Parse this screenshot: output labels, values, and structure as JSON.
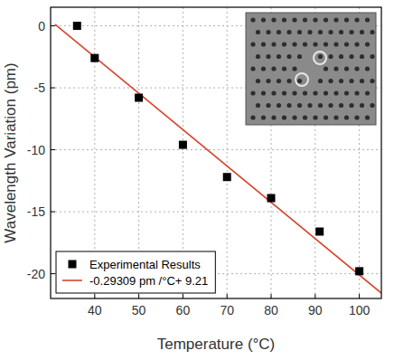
{
  "chart_data": {
    "type": "scatter",
    "x_label": "Temperature (°C)",
    "y_label": "Wavelength Variation (pm)",
    "xlim": [
      30,
      105
    ],
    "ylim": [
      -22,
      1.5
    ],
    "xticks": [
      40,
      50,
      60,
      70,
      80,
      90,
      100
    ],
    "yticks": [
      -20,
      -15,
      -10,
      -5,
      0
    ],
    "grid": true,
    "legend": "lower left",
    "series": [
      {
        "name": "Experimental Results",
        "type": "scatter",
        "marker": "square",
        "color": "#000000",
        "x": [
          36,
          40,
          50,
          60,
          70,
          80,
          91,
          100
        ],
        "values": [
          0,
          -2.6,
          -5.8,
          -9.6,
          -12.2,
          -13.9,
          -16.6,
          -19.8
        ]
      },
      {
        "name": "-0.29309 pm /°C+ 9.21",
        "type": "line",
        "line_style": "solid",
        "color": "#d9432b",
        "x": [
          31,
          105
        ],
        "values": [
          0.12,
          -21.57
        ]
      }
    ]
  }
}
